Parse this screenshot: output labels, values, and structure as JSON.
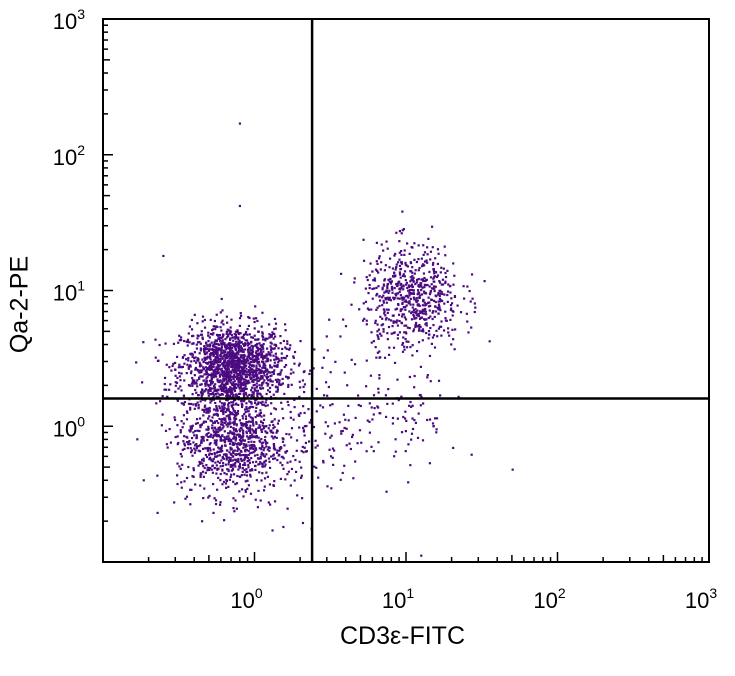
{
  "chart_data": {
    "type": "scatter",
    "title": "",
    "xlabel": "CD3ε-FITC",
    "ylabel": "Qa-2-PE",
    "x_scale": "log",
    "y_scale": "log",
    "xlim": [
      0.1,
      1000
    ],
    "ylim": [
      0.1,
      1000
    ],
    "x_ticks": [
      {
        "base": "10",
        "exp": "0",
        "value": 1
      },
      {
        "base": "10",
        "exp": "1",
        "value": 10
      },
      {
        "base": "10",
        "exp": "2",
        "value": 100
      },
      {
        "base": "10",
        "exp": "3",
        "value": 1000
      }
    ],
    "y_ticks": [
      {
        "base": "10",
        "exp": "0",
        "value": 1
      },
      {
        "base": "10",
        "exp": "1",
        "value": 10
      },
      {
        "base": "10",
        "exp": "2",
        "value": 100
      },
      {
        "base": "10",
        "exp": "3",
        "value": 1000
      }
    ],
    "quadrant_gates": {
      "x": 2.4,
      "y": 1.6
    },
    "point_color": "#4b0a80",
    "populations": [
      {
        "center": [
          0.72,
          2.8
        ],
        "spread_decades": [
          0.17,
          0.15
        ],
        "count": 1500
      },
      {
        "center": [
          0.68,
          0.8
        ],
        "spread_decades": [
          0.17,
          0.2
        ],
        "count": 900
      },
      {
        "center": [
          11,
          9
        ],
        "spread_decades": [
          0.16,
          0.19
        ],
        "count": 650
      },
      {
        "center": [
          1.6,
          0.9
        ],
        "spread_decades": [
          0.35,
          0.3
        ],
        "count": 250
      },
      {
        "center": [
          9,
          1.2
        ],
        "spread_decades": [
          0.2,
          0.2
        ],
        "count": 90
      }
    ],
    "outliers": [
      [
        0.8,
        170
      ],
      [
        0.8,
        42
      ],
      [
        0.25,
        18
      ],
      [
        2.4,
        1.6
      ]
    ]
  }
}
